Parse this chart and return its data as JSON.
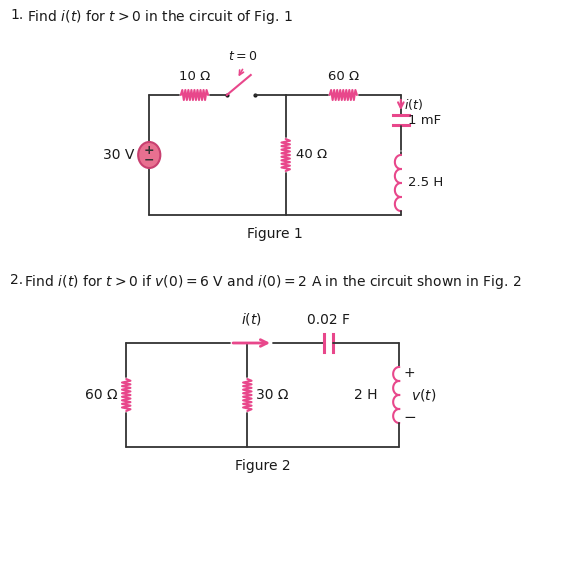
{
  "title1_num": "1.",
  "title1_text": "Find $i(t)$ for $t > 0$ in the circuit of Fig. 1",
  "title2_num": "2.",
  "title2_text": "Find $i(t)$ for $t > 0$ if $v(0) = 6$ V and $i(0) = 2$ A in the circuit shown in Fig. 2",
  "fig1_label": "Figure 1",
  "fig2_label": "Figure 2",
  "pink": "#E8478B",
  "black": "#1a1a1a",
  "bg": "#ffffff",
  "label_color": "#333333"
}
